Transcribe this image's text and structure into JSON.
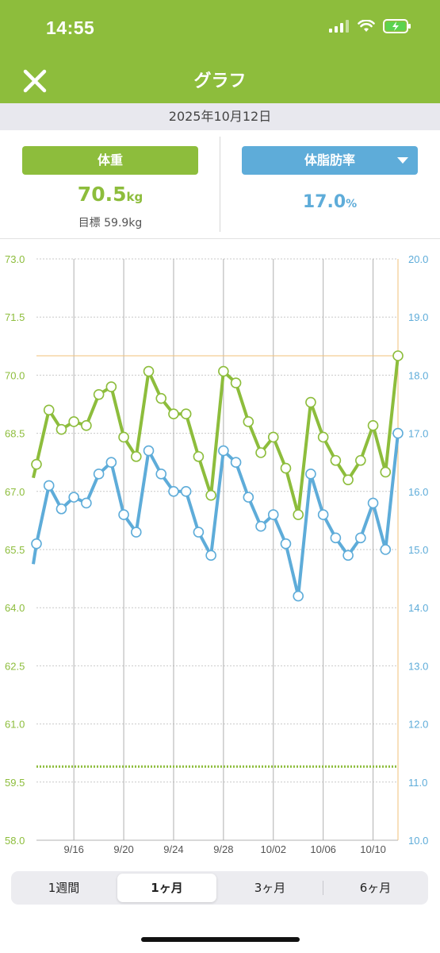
{
  "status": {
    "time": "14:55"
  },
  "nav": {
    "title": "グラフ"
  },
  "date": "2025年10月12日",
  "metrics": {
    "weight_button": "体重",
    "weight_value": "70.5",
    "weight_unit": "kg",
    "goal": "目標 59.9kg",
    "fat_button": "体脂肪率",
    "fat_value": "17.0",
    "fat_unit": "%"
  },
  "colors": {
    "green": "#8dbd3c",
    "blue": "#5eacd9"
  },
  "icons": {
    "close": "close-icon",
    "dropdown": "chevron-down-icon"
  },
  "segments": [
    "1週間",
    "1ヶ月",
    "3ヶ月",
    "6ヶ月"
  ],
  "selected_segment": "1ヶ月",
  "chart_data": {
    "type": "line",
    "x": [
      "9/13",
      "9/14",
      "9/15",
      "9/16",
      "9/17",
      "9/18",
      "9/19",
      "9/20",
      "9/21",
      "9/22",
      "9/23",
      "9/24",
      "9/25",
      "9/26",
      "9/27",
      "9/28",
      "9/29",
      "9/30",
      "10/01",
      "10/02",
      "10/03",
      "10/04",
      "10/05",
      "10/06",
      "10/07",
      "10/08",
      "10/09",
      "10/10",
      "10/11",
      "10/12"
    ],
    "x_tick_labels": [
      "9/16",
      "9/20",
      "9/24",
      "9/28",
      "10/02",
      "10/06",
      "10/10"
    ],
    "series": [
      {
        "values": [
          67.7,
          69.1,
          68.6,
          68.8,
          68.7,
          69.5,
          69.7,
          68.4,
          67.9,
          70.1,
          69.4,
          69.0,
          69.0,
          67.9,
          66.9,
          70.1,
          69.8,
          68.8,
          68.0,
          68.4,
          67.6,
          66.4,
          69.3,
          68.4,
          67.8,
          67.3,
          67.8,
          68.7,
          67.5,
          70.5
        ],
        "axis": "left"
      },
      {
        "values": [
          15.1,
          16.1,
          15.7,
          15.9,
          15.8,
          16.3,
          16.5,
          15.6,
          15.3,
          16.7,
          16.3,
          16.0,
          16.0,
          15.3,
          14.9,
          16.7,
          16.5,
          15.9,
          15.4,
          15.6,
          15.1,
          14.2,
          16.3,
          15.6,
          15.2,
          14.9,
          15.2,
          15.8,
          15.0,
          17.0
        ],
        "axis": "right"
      }
    ],
    "y_left_range": [
      58.0,
      73.0
    ],
    "y_left_ticks": [
      "58.0",
      "59.5",
      "61.0",
      "62.5",
      "64.0",
      "65.5",
      "67.0",
      "68.5",
      "70.0",
      "71.5",
      "73.0"
    ],
    "y_right_range": [
      10.0,
      20.0
    ],
    "y_right_ticks": [
      "10.0",
      "11.0",
      "12.0",
      "13.0",
      "14.0",
      "15.0",
      "16.0",
      "17.0",
      "18.0",
      "19.0",
      "20.0"
    ],
    "goal_line": 59.9,
    "reference_line_weight": 70.5,
    "grid": true
  }
}
